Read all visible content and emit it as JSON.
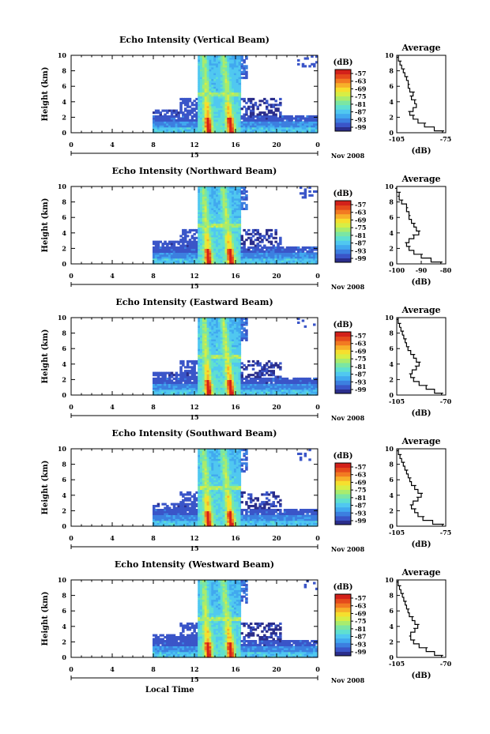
{
  "figure": {
    "bottom_xlabel": "Local Time",
    "date_label": "Nov 2008",
    "colormap": [
      "#2b2e8c",
      "#3a55c8",
      "#3c7fe0",
      "#41a9ef",
      "#50c8f0",
      "#5fe0d0",
      "#7be6a3",
      "#a9ec6d",
      "#d7ee45",
      "#f6df2e",
      "#f7b02a",
      "#f27a22",
      "#e54a1c",
      "#d3211a"
    ]
  },
  "chart_data": [
    {
      "type": "heatmap",
      "title": "Echo Intensity (Vertical Beam)",
      "ylabel": "Height (km)",
      "xticks": [
        "0",
        "4",
        "8",
        "12",
        "16",
        "20",
        "0"
      ],
      "yticks": [
        "0",
        "2",
        "4",
        "6",
        "8",
        "10"
      ],
      "xlim": [
        0,
        24
      ],
      "ylim": [
        0,
        10
      ],
      "colorbar": {
        "label": "(dB)",
        "ticks": [
          "-57",
          "-63",
          "-69",
          "-75",
          "-81",
          "-87",
          "-93",
          "-99"
        ]
      },
      "day_label": "15",
      "profile": {
        "title": "Average",
        "xlabel": "(dB)",
        "xticks": [
          "-105",
          "-75"
        ],
        "xlim": [
          -105,
          -75
        ],
        "yticks": [
          "0",
          "2",
          "4",
          "6",
          "8",
          "10"
        ],
        "ylim": [
          0,
          10
        ],
        "points": [
          [
            -77,
            0
          ],
          [
            -82,
            0.5
          ],
          [
            -88,
            1
          ],
          [
            -92,
            1.5
          ],
          [
            -95,
            2
          ],
          [
            -97,
            2.5
          ],
          [
            -95,
            3
          ],
          [
            -93,
            3.5
          ],
          [
            -94,
            4
          ],
          [
            -96,
            4.5
          ],
          [
            -95,
            5
          ],
          [
            -97,
            5.5
          ],
          [
            -98,
            6
          ],
          [
            -98,
            6.5
          ],
          [
            -99,
            7
          ],
          [
            -100,
            7.5
          ],
          [
            -101,
            8
          ],
          [
            -102,
            8.5
          ],
          [
            -103,
            9
          ],
          [
            -104,
            9.5
          ],
          [
            -104,
            10
          ]
        ]
      }
    },
    {
      "type": "heatmap",
      "title": "Echo Intensity (Northward Beam)",
      "ylabel": "Height (km)",
      "xticks": [
        "0",
        "4",
        "8",
        "12",
        "16",
        "20",
        "0"
      ],
      "yticks": [
        "0",
        "2",
        "4",
        "6",
        "8",
        "10"
      ],
      "xlim": [
        0,
        24
      ],
      "ylim": [
        0,
        10
      ],
      "colorbar": {
        "label": "(dB)",
        "ticks": [
          "-57",
          "-63",
          "-69",
          "-75",
          "-81",
          "-87",
          "-93",
          "-99"
        ]
      },
      "day_label": "15",
      "profile": {
        "title": "Average",
        "xlabel": "(dB)",
        "xticks": [
          "-100",
          "-90",
          "-80"
        ],
        "xlim": [
          -100,
          -80
        ],
        "yticks": [
          "0",
          "2",
          "4",
          "6",
          "8",
          "10"
        ],
        "ylim": [
          0,
          10
        ],
        "points": [
          [
            -82,
            0
          ],
          [
            -86,
            0.5
          ],
          [
            -90,
            1
          ],
          [
            -93,
            1.5
          ],
          [
            -95,
            2
          ],
          [
            -96,
            2.5
          ],
          [
            -95,
            3
          ],
          [
            -93,
            3.5
          ],
          [
            -91,
            4
          ],
          [
            -92,
            4.5
          ],
          [
            -93,
            5
          ],
          [
            -94,
            5.5
          ],
          [
            -95,
            6
          ],
          [
            -95,
            6.5
          ],
          [
            -96,
            7
          ],
          [
            -96,
            7.5
          ],
          [
            -98,
            8
          ],
          [
            -99,
            8.5
          ],
          [
            -99,
            9
          ],
          [
            -100,
            9.5
          ],
          [
            -100,
            10
          ]
        ]
      }
    },
    {
      "type": "heatmap",
      "title": "Echo Intensity (Eastward Beam)",
      "ylabel": "Height (km)",
      "xticks": [
        "0",
        "4",
        "8",
        "12",
        "16",
        "20",
        "0"
      ],
      "yticks": [
        "0",
        "2",
        "4",
        "6",
        "8",
        "10"
      ],
      "xlim": [
        0,
        24
      ],
      "ylim": [
        0,
        10
      ],
      "colorbar": {
        "label": "(dB)",
        "ticks": [
          "-57",
          "-63",
          "-69",
          "-75",
          "-81",
          "-87",
          "-93",
          "-99"
        ]
      },
      "day_label": "15",
      "profile": {
        "title": "Average",
        "xlabel": "(dB)",
        "xticks": [
          "-105",
          "-70"
        ],
        "xlim": [
          -105,
          -70
        ],
        "yticks": [
          "0",
          "2",
          "4",
          "6",
          "8",
          "10"
        ],
        "ylim": [
          0,
          10
        ],
        "points": [
          [
            -73,
            0
          ],
          [
            -78,
            0.5
          ],
          [
            -84,
            1
          ],
          [
            -89,
            1.5
          ],
          [
            -93,
            2
          ],
          [
            -95,
            2.5
          ],
          [
            -94,
            3
          ],
          [
            -91,
            3.5
          ],
          [
            -89,
            4
          ],
          [
            -91,
            4.5
          ],
          [
            -93,
            5
          ],
          [
            -95,
            5.5
          ],
          [
            -97,
            6
          ],
          [
            -98,
            6.5
          ],
          [
            -99,
            7
          ],
          [
            -100,
            7.5
          ],
          [
            -101,
            8
          ],
          [
            -102,
            8.5
          ],
          [
            -103,
            9
          ],
          [
            -104,
            9.5
          ],
          [
            -104,
            10
          ]
        ]
      }
    },
    {
      "type": "heatmap",
      "title": "Echo Intensity (Southward Beam)",
      "ylabel": "Height (km)",
      "xticks": [
        "0",
        "4",
        "8",
        "12",
        "16",
        "20",
        "0"
      ],
      "yticks": [
        "0",
        "2",
        "4",
        "6",
        "8",
        "10"
      ],
      "xlim": [
        0,
        24
      ],
      "ylim": [
        0,
        10
      ],
      "colorbar": {
        "label": "(dB)",
        "ticks": [
          "-57",
          "-63",
          "-69",
          "-75",
          "-81",
          "-87",
          "-93",
          "-99"
        ]
      },
      "day_label": "15",
      "profile": {
        "title": "Average",
        "xlabel": "(dB)",
        "xticks": [
          "-105",
          "-75"
        ],
        "xlim": [
          -105,
          -75
        ],
        "yticks": [
          "0",
          "2",
          "4",
          "6",
          "8",
          "10"
        ],
        "ylim": [
          0,
          10
        ],
        "points": [
          [
            -77,
            0
          ],
          [
            -83,
            0.5
          ],
          [
            -89,
            1
          ],
          [
            -92,
            1.5
          ],
          [
            -94,
            2
          ],
          [
            -96,
            2.5
          ],
          [
            -95,
            3
          ],
          [
            -92,
            3.5
          ],
          [
            -90,
            4
          ],
          [
            -92,
            4.5
          ],
          [
            -94,
            5
          ],
          [
            -96,
            5.5
          ],
          [
            -97,
            6
          ],
          [
            -98,
            6.5
          ],
          [
            -99,
            7
          ],
          [
            -100,
            7.5
          ],
          [
            -101,
            8
          ],
          [
            -102,
            8.5
          ],
          [
            -103,
            9
          ],
          [
            -104,
            9.5
          ],
          [
            -104,
            10
          ]
        ]
      }
    },
    {
      "type": "heatmap",
      "title": "Echo Intensity (Westward Beam)",
      "ylabel": "Height (km)",
      "xticks": [
        "0",
        "4",
        "8",
        "12",
        "16",
        "20",
        "0"
      ],
      "yticks": [
        "0",
        "2",
        "4",
        "6",
        "8",
        "10"
      ],
      "xlim": [
        0,
        24
      ],
      "ylim": [
        0,
        10
      ],
      "colorbar": {
        "label": "(dB)",
        "ticks": [
          "-57",
          "-63",
          "-69",
          "-75",
          "-81",
          "-87",
          "-93",
          "-99"
        ]
      },
      "day_label": "15",
      "profile": {
        "title": "Average",
        "xlabel": "(dB)",
        "xticks": [
          "-105",
          "-70"
        ],
        "xlim": [
          -105,
          -70
        ],
        "yticks": [
          "0",
          "2",
          "4",
          "6",
          "8",
          "10"
        ],
        "ylim": [
          0,
          10
        ],
        "points": [
          [
            -73,
            0
          ],
          [
            -78,
            0.5
          ],
          [
            -84,
            1
          ],
          [
            -89,
            1.5
          ],
          [
            -93,
            2
          ],
          [
            -95,
            2.5
          ],
          [
            -95,
            3
          ],
          [
            -92,
            3.5
          ],
          [
            -90,
            4
          ],
          [
            -92,
            4.5
          ],
          [
            -94,
            5
          ],
          [
            -96,
            5.5
          ],
          [
            -97,
            6
          ],
          [
            -98,
            6.5
          ],
          [
            -99,
            7
          ],
          [
            -100,
            7.5
          ],
          [
            -101,
            8
          ],
          [
            -102,
            8.5
          ],
          [
            -103,
            9
          ],
          [
            -104,
            9.5
          ],
          [
            -104,
            10
          ]
        ]
      }
    }
  ]
}
